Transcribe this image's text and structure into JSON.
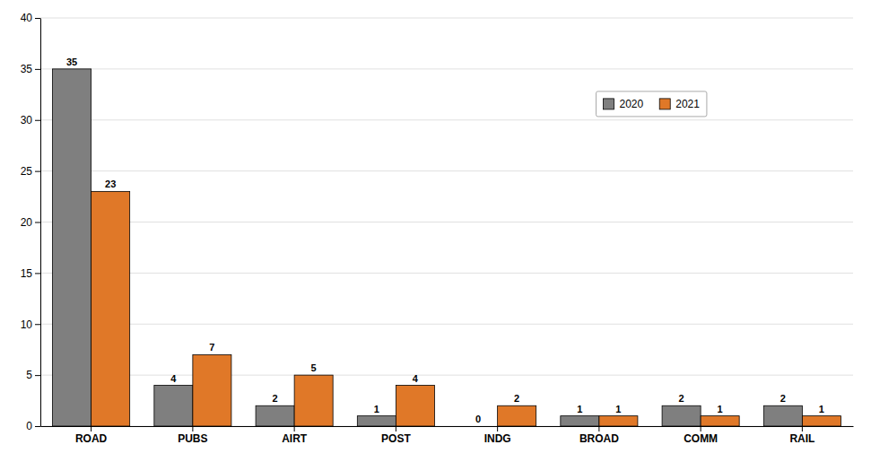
{
  "chart_data": {
    "type": "bar",
    "categories": [
      "ROAD",
      "PUBS",
      "AIRT",
      "POST",
      "INDG",
      "BROAD",
      "COMM",
      "RAIL"
    ],
    "series": [
      {
        "name": "2020",
        "color": "#7f7f7f",
        "values": [
          35,
          4,
          2,
          1,
          0,
          1,
          2,
          2
        ]
      },
      {
        "name": "2021",
        "color": "#E07828",
        "values": [
          23,
          7,
          5,
          4,
          2,
          1,
          1,
          1
        ]
      }
    ],
    "ylim": [
      0,
      40
    ],
    "yticks": [
      0,
      5,
      10,
      15,
      20,
      25,
      30,
      35,
      40
    ],
    "grid": true,
    "legend": "upper right",
    "data_labels": true
  }
}
